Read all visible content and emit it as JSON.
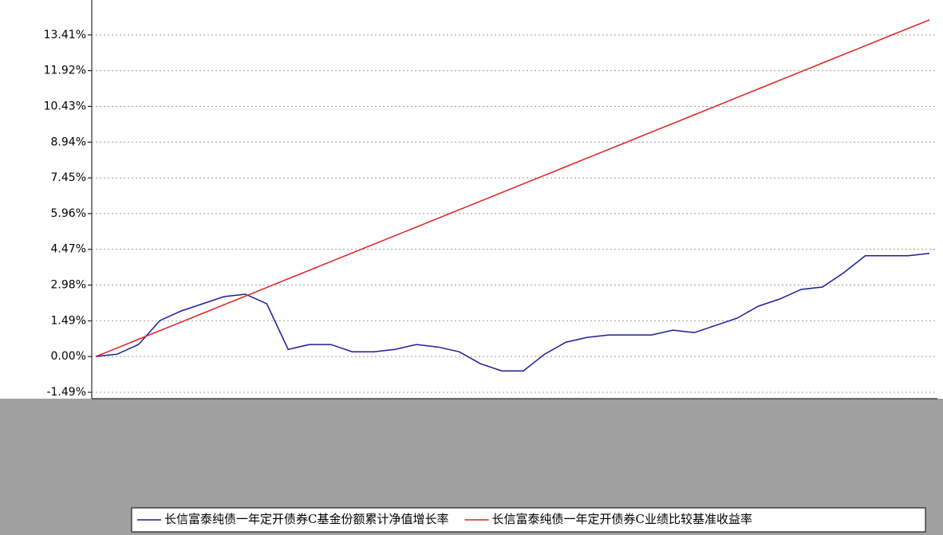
{
  "chart_data": {
    "type": "line",
    "categories": [
      null,
      null,
      null,
      null,
      null,
      null,
      null,
      null,
      null,
      null,
      null,
      null,
      null,
      null,
      null,
      null,
      null,
      null,
      null,
      null,
      null,
      null,
      null,
      null,
      null,
      null,
      null,
      null,
      null,
      null,
      null,
      null,
      null,
      null,
      null,
      null,
      null,
      null,
      null,
      null
    ],
    "series": [
      {
        "name": "长信富泰纯债一年定开债券C基金份额累计净值增长率",
        "color": "#1c1c9c",
        "values": [
          0,
          0.1,
          0.5,
          1.5,
          1.9,
          2.2,
          2.5,
          2.6,
          2.2,
          0.3,
          0.5,
          0.5,
          0.2,
          0.2,
          0.3,
          0.5,
          0.4,
          0.2,
          -0.3,
          -0.6,
          -0.6,
          0.1,
          0.6,
          0.8,
          0.9,
          0.9,
          0.9,
          1.1,
          1.0,
          1.3,
          1.6,
          2.1,
          2.4,
          2.8,
          2.9,
          3.5,
          4.2,
          4.2,
          4.2,
          4.3
        ]
      },
      {
        "name": "长信富泰纯债一年定开债券C业绩比较基准收益率",
        "color": "#e02020",
        "values": [
          0,
          0.36,
          0.72,
          1.08,
          1.44,
          1.8,
          2.16,
          2.52,
          2.88,
          3.24,
          3.6,
          3.96,
          4.32,
          4.68,
          5.04,
          5.4,
          5.76,
          6.12,
          6.48,
          6.84,
          7.2,
          7.56,
          7.92,
          8.28,
          8.64,
          9.0,
          9.36,
          9.72,
          10.08,
          10.44,
          10.8,
          11.16,
          11.52,
          11.88,
          12.24,
          12.6,
          12.96,
          13.32,
          13.68,
          14.04
        ]
      }
    ],
    "ylim": [
      -1.49,
      14.9
    ],
    "yticks": [
      {
        "value": 13.41,
        "label": "13.41%"
      },
      {
        "value": 11.92,
        "label": "11.92%"
      },
      {
        "value": 10.43,
        "label": "10.43%"
      },
      {
        "value": 8.94,
        "label": "8.94%"
      },
      {
        "value": 7.45,
        "label": "7.45%"
      },
      {
        "value": 5.96,
        "label": "5.96%"
      },
      {
        "value": 4.47,
        "label": "4.47%"
      },
      {
        "value": 2.98,
        "label": "2.98%"
      },
      {
        "value": 1.49,
        "label": "1.49%"
      },
      {
        "value": 0.0,
        "label": "0.00%"
      },
      {
        "value": -1.49,
        "label": "-1.49%"
      }
    ],
    "grid": true
  }
}
